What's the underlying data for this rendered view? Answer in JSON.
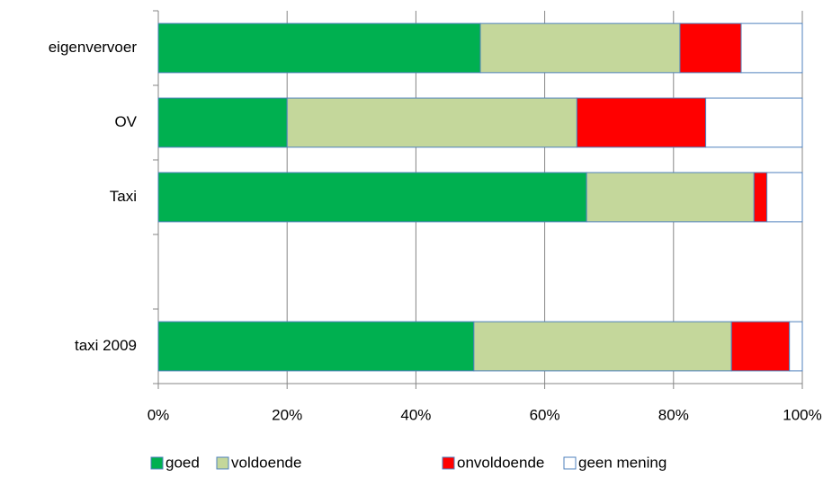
{
  "chart_data": {
    "type": "stacked-bar-horizontal",
    "categories": [
      "eigenvervoer",
      "OV",
      "Taxi",
      null,
      "taxi 2009"
    ],
    "series": [
      {
        "name": "goed",
        "color": "#00b050",
        "values": [
          50,
          20,
          66.5,
          null,
          49
        ]
      },
      {
        "name": "voldoende",
        "color": "#c4d79b",
        "values": [
          31,
          45,
          26,
          null,
          40
        ]
      },
      {
        "name": "onvoldoende",
        "color": "#ff0000",
        "values": [
          9.5,
          20,
          2,
          null,
          9
        ]
      },
      {
        "name": "geen mening",
        "color": "#ffffff",
        "values": [
          9.5,
          15,
          5.5,
          null,
          2
        ]
      }
    ],
    "xlim": [
      0,
      100
    ],
    "xticks": [
      {
        "value": 0,
        "label": "0%"
      },
      {
        "value": 20,
        "label": "20%"
      },
      {
        "value": 40,
        "label": "40%"
      },
      {
        "value": 60,
        "label": "60%"
      },
      {
        "value": 80,
        "label": "80%"
      },
      {
        "value": 100,
        "label": "100%"
      }
    ],
    "grid": true,
    "legend": "bottom"
  }
}
